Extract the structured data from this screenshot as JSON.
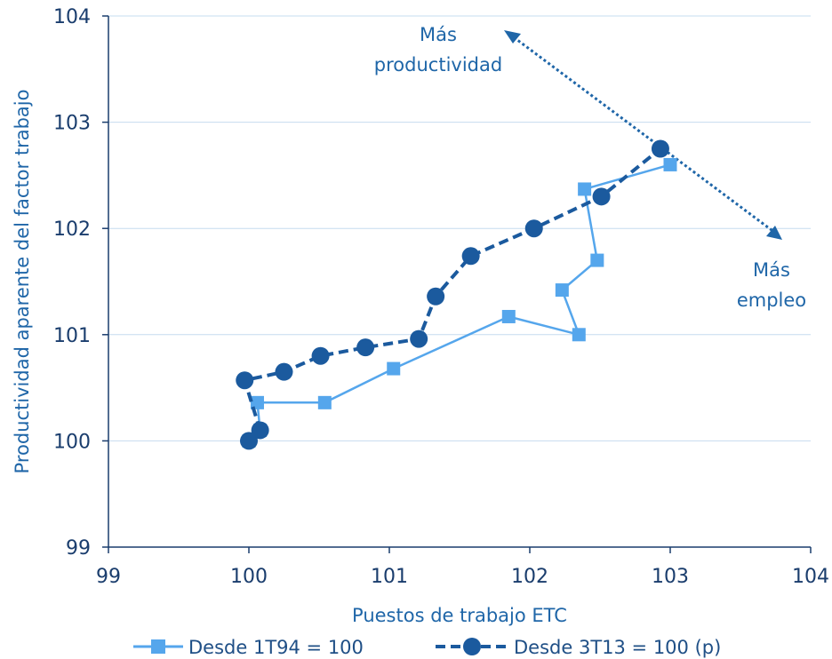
{
  "chart_data": {
    "type": "scatter",
    "xlabel": "Puestos de trabajo ETC",
    "ylabel": "Productividad aparente del factor trabajo",
    "xlim": [
      99,
      104
    ],
    "ylim": [
      99,
      104
    ],
    "xticks": [
      99,
      100,
      101,
      102,
      103,
      104
    ],
    "yticks": [
      99,
      100,
      101,
      102,
      103,
      104
    ],
    "grid": "horizontal",
    "legend_position": "bottom",
    "annotations": {
      "productivity_line1": "Más",
      "productivity_line2": "productividad",
      "employment_line1": "Más",
      "employment_line2": "empleo"
    },
    "series": [
      {
        "name": "Desde 1T94 = 100",
        "color": "#55a6ec",
        "marker": "square",
        "line": "solid",
        "points": [
          [
            100.0,
            100.0
          ],
          [
            100.08,
            100.1
          ],
          [
            100.06,
            100.36
          ],
          [
            100.54,
            100.36
          ],
          [
            101.03,
            100.68
          ],
          [
            101.85,
            101.17
          ],
          [
            102.35,
            101.0
          ],
          [
            102.23,
            101.42
          ],
          [
            102.48,
            101.7
          ],
          [
            102.39,
            102.37
          ],
          [
            103.0,
            102.6
          ]
        ]
      },
      {
        "name": "Desde 3T13 = 100 (p)",
        "color": "#1b5a9e",
        "marker": "circle",
        "line": "dashed",
        "points": [
          [
            100.0,
            100.0
          ],
          [
            100.08,
            100.1
          ],
          [
            99.97,
            100.57
          ],
          [
            100.25,
            100.65
          ],
          [
            100.51,
            100.8
          ],
          [
            100.83,
            100.88
          ],
          [
            101.21,
            100.96
          ],
          [
            101.33,
            101.36
          ],
          [
            101.58,
            101.74
          ],
          [
            102.03,
            102.0
          ],
          [
            102.51,
            102.3
          ],
          [
            102.93,
            102.75
          ]
        ]
      }
    ]
  }
}
